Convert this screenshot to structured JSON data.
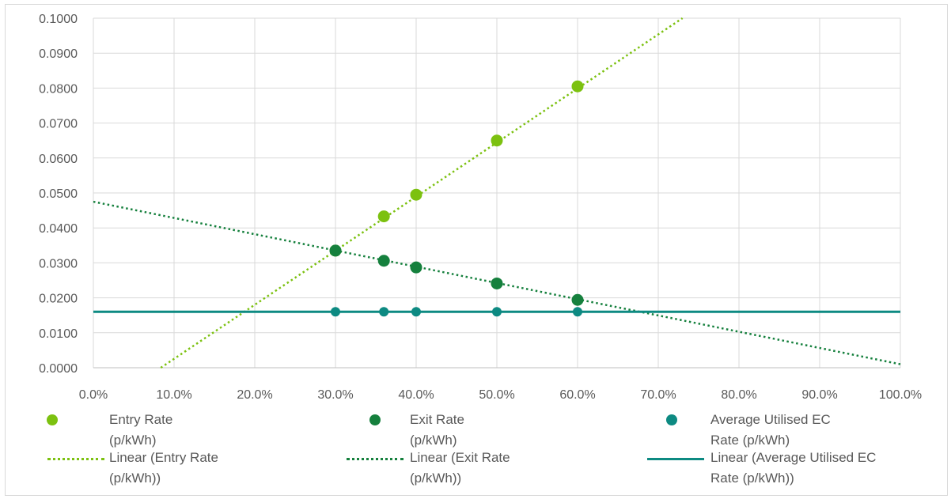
{
  "chart_data": {
    "type": "scatter",
    "title": "",
    "xlabel": "",
    "ylabel": "",
    "xlim": [
      0,
      1.0
    ],
    "ylim": [
      0,
      0.1
    ],
    "x_ticks": [
      "0.0%",
      "10.0%",
      "20.0%",
      "30.0%",
      "40.0%",
      "50.0%",
      "60.0%",
      "70.0%",
      "80.0%",
      "90.0%",
      "100.0%"
    ],
    "y_ticks": [
      "0.0000",
      "0.0100",
      "0.0200",
      "0.0300",
      "0.0400",
      "0.0500",
      "0.0600",
      "0.0700",
      "0.0800",
      "0.0900",
      "0.1000"
    ],
    "grid": true,
    "legend_position": "bottom",
    "series": [
      {
        "name": "Entry Rate (p/kWh)",
        "color": "#7cc110",
        "x": [
          0.3,
          0.36,
          0.4,
          0.5,
          0.6
        ],
        "y": [
          0.0335,
          0.0433,
          0.0495,
          0.065,
          0.0805
        ]
      },
      {
        "name": "Exit Rate (p/kWh)",
        "color": "#15803d",
        "x": [
          0.3,
          0.36,
          0.4,
          0.5,
          0.6
        ],
        "y": [
          0.0335,
          0.0306,
          0.0287,
          0.0241,
          0.0194
        ]
      },
      {
        "name": "Average Utilised EC Rate (p/kWh)",
        "color": "#0d8a82",
        "x": [
          0.3,
          0.36,
          0.4,
          0.5,
          0.6
        ],
        "y": [
          0.016,
          0.016,
          0.016,
          0.016,
          0.016
        ]
      }
    ],
    "trendlines": [
      {
        "name": "Linear (Entry Rate (p/kWh))",
        "color": "#7cc110",
        "style": "dotted",
        "slope": 0.1547,
        "intercept": -0.01293
      },
      {
        "name": "Linear (Exit Rate (p/kWh))",
        "color": "#15803d",
        "style": "dotted",
        "slope": -0.0465,
        "intercept": 0.0475
      },
      {
        "name": "Linear (Average Utilised EC Rate (p/kWh))",
        "color": "#0d8a82",
        "style": "solid",
        "slope": 0,
        "intercept": 0.016
      }
    ]
  },
  "legend": {
    "items": [
      {
        "line1": "Entry Rate",
        "line2": "(p/kWh)"
      },
      {
        "line1": "Exit Rate",
        "line2": "(p/kWh)"
      },
      {
        "line1": "Average Utilised EC",
        "line2": "Rate (p/kWh)"
      },
      {
        "line1": "Linear (Entry Rate",
        "line2": "(p/kWh))"
      },
      {
        "line1": "Linear (Exit Rate",
        "line2": "(p/kWh))"
      },
      {
        "line1": "Linear (Average Utilised EC",
        "line2": "Rate (p/kWh))"
      }
    ]
  }
}
